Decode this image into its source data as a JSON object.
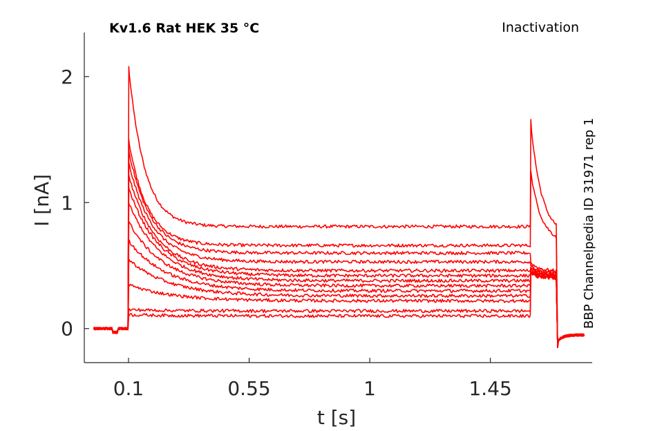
{
  "chart_data": {
    "type": "line",
    "title": "Kv1.6  Rat  HEK  35 °C",
    "protocol_label": "Inactivation",
    "side_note": "BBP Channelpedia ID 31971 rep 1",
    "xlabel": "t [s]",
    "ylabel": "I [nA]",
    "xlim": [
      -0.065,
      1.83
    ],
    "ylim": [
      -0.27,
      2.35
    ],
    "xticks": [
      0.1,
      0.55,
      1,
      1.45
    ],
    "xtick_labels": [
      "0.1",
      "0.55",
      "1",
      "1.45"
    ],
    "yticks": [
      0,
      1,
      2
    ],
    "ytick_labels": [
      "0",
      "1",
      "2"
    ],
    "grid": false,
    "legend": "none",
    "series_color": "#ff0000",
    "step_start": 0.1,
    "step_end": 1.6,
    "tail_end": 1.7,
    "series": [
      {
        "peak": 2.08,
        "ss": 0.81,
        "tail_peak": 1.66,
        "tail_end": 0.74
      },
      {
        "peak": 1.5,
        "ss": 0.66,
        "tail_peak": 1.25,
        "tail_end": 0.68
      },
      {
        "peak": 1.42,
        "ss": 0.6,
        "tail_peak": 0.52,
        "tail_end": 0.45
      },
      {
        "peak": 1.32,
        "ss": 0.53,
        "tail_peak": 0.5,
        "tail_end": 0.44
      },
      {
        "peak": 1.22,
        "ss": 0.46,
        "tail_peak": 0.49,
        "tail_end": 0.43
      },
      {
        "peak": 1.12,
        "ss": 0.42,
        "tail_peak": 0.48,
        "tail_end": 0.42
      },
      {
        "peak": 1.0,
        "ss": 0.38,
        "tail_peak": 0.47,
        "tail_end": 0.42
      },
      {
        "peak": 0.85,
        "ss": 0.34,
        "tail_peak": 0.46,
        "tail_end": 0.41
      },
      {
        "peak": 0.7,
        "ss": 0.3,
        "tail_peak": 0.45,
        "tail_end": 0.41
      },
      {
        "peak": 0.55,
        "ss": 0.26,
        "tail_peak": 0.45,
        "tail_end": 0.4
      },
      {
        "peak": 0.35,
        "ss": 0.22,
        "tail_peak": 0.44,
        "tail_end": 0.4
      },
      {
        "peak": 0.15,
        "ss": 0.14,
        "tail_peak": 0.44,
        "tail_end": 0.4
      },
      {
        "peak": 0.11,
        "ss": 0.1,
        "tail_peak": 0.43,
        "tail_end": 0.4
      }
    ]
  }
}
